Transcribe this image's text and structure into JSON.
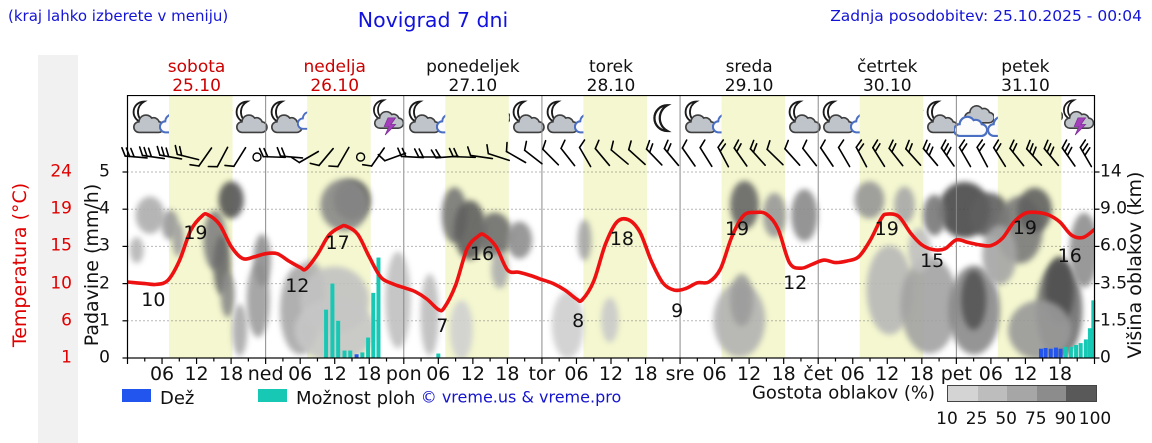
{
  "header": {
    "hint": "(kraj lahko izberete v meniju)",
    "title": "Novigrad 7 dni",
    "updated": "Zadnja posodobitev: 25.10.2025 - 00:04"
  },
  "days": [
    {
      "name": "sobota",
      "date": "25.10",
      "highlight": true,
      "icons": [
        "moon-cloud",
        "sun-cloud",
        "sun-cloud",
        "moon-cloud"
      ]
    },
    {
      "name": "nedelja",
      "date": "26.10",
      "highlight": true,
      "icons": [
        "moon-cloud",
        "sun-storm",
        "sun-storm",
        "moon-storm"
      ]
    },
    {
      "name": "ponedeljek",
      "date": "27.10",
      "highlight": false,
      "icons": [
        "moon-cloud",
        "sun-cloud",
        "clouds",
        "moon-cloud"
      ]
    },
    {
      "name": "torek",
      "date": "28.10",
      "highlight": false,
      "icons": [
        "moon-cloud",
        "sun-cloud",
        "sun",
        "moon"
      ]
    },
    {
      "name": "sreda",
      "date": "29.10",
      "highlight": false,
      "icons": [
        "moon-cloud",
        "sun-cloud",
        "sun-cloud",
        "moon-cloud"
      ]
    },
    {
      "name": "četrtek",
      "date": "30.10",
      "highlight": false,
      "icons": [
        "moon-cloud",
        "sun-cloud",
        "sun-cloud",
        "moon-cloud"
      ]
    },
    {
      "name": "petek",
      "date": "31.10",
      "highlight": false,
      "icons": [
        "clouds",
        "clouds",
        "clouds-drizzle",
        "moon-storm"
      ]
    }
  ],
  "axes": {
    "temp_label": "Temperatura (°C)",
    "temp_ticks": [
      "24",
      "19",
      "15",
      "10",
      "6",
      "1"
    ],
    "precip_label": "Padavine (mm/h)",
    "precip_ticks": [
      "5",
      "4",
      "3",
      "2",
      "1",
      "0"
    ],
    "cloud_label": "Višina oblakov (km)",
    "cloud_ticks": [
      "14",
      "9.0",
      "6.0",
      "3.5",
      "1.5",
      "0"
    ],
    "time_ticks": [
      "06",
      "12",
      "18"
    ],
    "day_abbrs": [
      "ned",
      "pon",
      "tor",
      "sre",
      "čet",
      "pet"
    ]
  },
  "legend": {
    "rain_label": "Dež",
    "shower_label": "Možnost ploh",
    "copyright": "© vreme.us & vreme.pro",
    "cloud_density_label": "Gostota oblakov (%)",
    "density_ticks": [
      "10",
      "25",
      "50",
      "75",
      "90",
      "100"
    ]
  },
  "colors": {
    "rain": "#2255ee",
    "shower": "#17c9b4",
    "temp_curve": "#ee1111",
    "temp_axis": "#e00000",
    "day_red": "#cc0000",
    "blue_text": "#1414d6",
    "day_band": "#f4f7cf",
    "density_scale": [
      "#d4d4d4",
      "#bdbdbd",
      "#a6a6a6",
      "#8c8c8c",
      "#595959"
    ]
  },
  "chart_data": {
    "type": "line",
    "title": "Novigrad 7 dni",
    "x_unit": "hours from Sat 00:00",
    "xlim": [
      0,
      168
    ],
    "precip_axis_lim": [
      0,
      5
    ],
    "temp_axis_ticks_c": [
      1,
      6,
      10,
      15,
      19,
      24
    ],
    "cloud_height_axis_km": [
      0,
      1.5,
      3.5,
      6.0,
      9.0,
      14
    ],
    "temperature": {
      "x": [
        0,
        3,
        5,
        7,
        9,
        11,
        13,
        14,
        16,
        18,
        20,
        22,
        24,
        26,
        28,
        30,
        31,
        33,
        35,
        37,
        38,
        40,
        42,
        44,
        46,
        48,
        50,
        52,
        54,
        55,
        57,
        59,
        61,
        62,
        64,
        66,
        68,
        70,
        72,
        74,
        76,
        78,
        79,
        81,
        83,
        85,
        87,
        89,
        91,
        93,
        95,
        97,
        99,
        101,
        103,
        105,
        107,
        109,
        111,
        113,
        115,
        117,
        119,
        121,
        123,
        125,
        127,
        129,
        131,
        132,
        134,
        136,
        138,
        140,
        142,
        144,
        146,
        148,
        150,
        152,
        154,
        156,
        158,
        160,
        162,
        164,
        166,
        168
      ],
      "values": [
        10.4,
        10.2,
        10.1,
        10.6,
        13.0,
        16.8,
        18.6,
        18.7,
        17.5,
        14.8,
        13.3,
        13.5,
        13.9,
        13.9,
        13.0,
        12.2,
        12.0,
        13.8,
        16.2,
        17.2,
        17.3,
        16.3,
        13.5,
        11.0,
        10.2,
        9.7,
        9.2,
        8.3,
        7.0,
        7.2,
        10.0,
        14.5,
        16.1,
        16.2,
        14.8,
        11.9,
        11.6,
        11.2,
        10.7,
        10.2,
        9.4,
        8.3,
        8.2,
        10.5,
        15.0,
        17.8,
        18.1,
        16.6,
        13.0,
        10.3,
        9.4,
        9.6,
        10.3,
        10.4,
        12.0,
        16.0,
        18.6,
        19.0,
        18.8,
        17.0,
        12.8,
        12.1,
        12.6,
        13.1,
        12.8,
        13.0,
        13.5,
        15.5,
        18.3,
        18.8,
        18.5,
        16.5,
        15.0,
        14.4,
        14.5,
        15.6,
        15.3,
        15.0,
        14.9,
        15.8,
        17.8,
        18.9,
        19.0,
        18.7,
        17.8,
        16.2,
        15.9,
        16.9
      ]
    },
    "point_labels": [
      [
        4.5,
        1.59,
        "10"
      ],
      [
        11.8,
        3.39,
        "19"
      ],
      [
        29.5,
        1.96,
        "12"
      ],
      [
        36.5,
        3.12,
        "17"
      ],
      [
        54.7,
        0.89,
        "7"
      ],
      [
        61.6,
        2.82,
        "16"
      ],
      [
        78.3,
        1.02,
        "8"
      ],
      [
        85.9,
        3.23,
        "18"
      ],
      [
        95.5,
        1.29,
        "9"
      ],
      [
        105.9,
        3.49,
        "19"
      ],
      [
        116.0,
        2.04,
        "12"
      ],
      [
        131.9,
        3.49,
        "19"
      ],
      [
        139.8,
        2.63,
        "15"
      ],
      [
        155.9,
        3.52,
        "19"
      ],
      [
        163.7,
        2.77,
        "16"
      ]
    ],
    "precipitation_mm_h": [
      [
        34.5,
        1.3,
        "s"
      ],
      [
        35.6,
        2.0,
        "s"
      ],
      [
        36.6,
        1.0,
        "s"
      ],
      [
        37.7,
        0.2,
        "s"
      ],
      [
        38.7,
        0.2,
        "s"
      ],
      [
        39.8,
        0.1,
        "r"
      ],
      [
        40.8,
        0.15,
        "s"
      ],
      [
        41.8,
        0.55,
        "s"
      ],
      [
        42.7,
        1.75,
        "s"
      ],
      [
        43.6,
        2.7,
        "s"
      ],
      [
        54.0,
        0.12,
        "s"
      ],
      [
        158.7,
        0.25,
        "r"
      ],
      [
        159.5,
        0.27,
        "r"
      ],
      [
        160.4,
        0.25,
        "r"
      ],
      [
        161.3,
        0.28,
        "r"
      ],
      [
        162.1,
        0.25,
        "r"
      ],
      [
        163.0,
        0.3,
        "s"
      ],
      [
        163.9,
        0.3,
        "s"
      ],
      [
        164.8,
        0.35,
        "s"
      ],
      [
        165.6,
        0.4,
        "s"
      ],
      [
        166.5,
        0.5,
        "s"
      ],
      [
        167.2,
        0.8,
        "s"
      ],
      [
        167.8,
        1.55,
        "s"
      ]
    ],
    "cloud_blobs": [
      [
        3.9,
        3.84,
        2.5,
        0.5,
        "#aeaeae"
      ],
      [
        7.4,
        3.58,
        1.5,
        0.4,
        "#9a9a9a"
      ],
      [
        1.6,
        2.9,
        1.2,
        0.35,
        "#b5b5b5"
      ],
      [
        8.8,
        3.17,
        1.0,
        0.45,
        "#a0a0a0"
      ],
      [
        15.2,
        3.17,
        2.0,
        0.8,
        "#808080"
      ],
      [
        16.4,
        2.5,
        1.5,
        0.8,
        "#6a6a6a"
      ],
      [
        17.4,
        1.69,
        1.2,
        0.6,
        "#8a8a8a"
      ],
      [
        18.0,
        4.25,
        2.2,
        0.5,
        "#555555"
      ],
      [
        19.5,
        0.75,
        1.3,
        0.7,
        "#aaaaaa"
      ],
      [
        22.7,
        1.56,
        2.0,
        1.0,
        "#9e9e9e"
      ],
      [
        23.4,
        2.63,
        1.5,
        0.7,
        "#8f8f8f"
      ],
      [
        30.0,
        1.29,
        3.5,
        1.2,
        "#a8a8a8"
      ],
      [
        31.7,
        1.83,
        2.5,
        0.8,
        "#b0b0b0"
      ],
      [
        36.0,
        1.56,
        6.0,
        0.9,
        "#c2c2c2"
      ],
      [
        36.0,
        0.75,
        7.0,
        0.85,
        "#c6c6c6"
      ],
      [
        39.0,
        4.25,
        3.2,
        0.55,
        "#5a5a5a"
      ],
      [
        37.7,
        4.11,
        4.2,
        0.7,
        "#888888"
      ],
      [
        47.0,
        1.56,
        2.2,
        1.3,
        "#c0c0c0"
      ],
      [
        52.5,
        1.16,
        1.6,
        1.1,
        "#bdbdbd"
      ],
      [
        56.8,
        3.84,
        2.2,
        0.75,
        "#777777"
      ],
      [
        59.5,
        3.44,
        2.8,
        0.8,
        "#5e5e5e"
      ],
      [
        63.8,
        3.31,
        3.0,
        0.6,
        "#6e6e6e"
      ],
      [
        68.1,
        3.17,
        2.2,
        0.5,
        "#8e8e8e"
      ],
      [
        64.7,
        2.37,
        1.5,
        0.5,
        "#aeaeae"
      ],
      [
        58.0,
        0.75,
        2.0,
        0.8,
        "#d0d0d0"
      ],
      [
        79.4,
        3.17,
        1.2,
        0.55,
        "#a5a5a5"
      ],
      [
        76.5,
        0.89,
        2.8,
        0.9,
        "#cfcfcf"
      ],
      [
        83.8,
        1.02,
        1.5,
        0.6,
        "#c9c9c9"
      ],
      [
        107.2,
        4.11,
        2.5,
        0.65,
        "#666666"
      ],
      [
        112.4,
        3.84,
        2.0,
        0.6,
        "#999999"
      ],
      [
        117.6,
        3.84,
        2.3,
        0.7,
        "#8a8a8a"
      ],
      [
        106.3,
        1.02,
        4.5,
        1.0,
        "#b2b2b2"
      ],
      [
        106.7,
        1.56,
        2.0,
        0.7,
        "#9c9c9c"
      ],
      [
        128.9,
        4.25,
        2.6,
        0.5,
        "#969696"
      ],
      [
        135.0,
        4.11,
        1.8,
        0.5,
        "#a8a8a8"
      ],
      [
        145.4,
        3.98,
        4.5,
        0.75,
        "#4a4a4a"
      ],
      [
        149.7,
        3.84,
        3.5,
        0.6,
        "#5e5e5e"
      ],
      [
        140.2,
        3.84,
        2.0,
        0.55,
        "#787878"
      ],
      [
        132.4,
        1.83,
        4.0,
        1.2,
        "#b8b8b8"
      ],
      [
        139.3,
        1.42,
        5.0,
        1.3,
        "#a2a2a2"
      ],
      [
        147.1,
        1.29,
        4.5,
        1.2,
        "#8a8a8a"
      ],
      [
        147.0,
        1.56,
        2.2,
        0.8,
        "#555555"
      ],
      [
        155.0,
        3.44,
        4.0,
        0.9,
        "#7a7a7a"
      ],
      [
        157.6,
        3.98,
        3.0,
        0.6,
        "#616161"
      ],
      [
        161.9,
        1.29,
        4.0,
        1.3,
        "#6f6f6f"
      ],
      [
        161.9,
        1.83,
        2.5,
        0.9,
        "#4f4f4f"
      ],
      [
        166.2,
        2.9,
        2.5,
        1.0,
        "#8e8e8e"
      ],
      [
        158.5,
        0.75,
        5.5,
        0.8,
        "#999999"
      ],
      [
        151.5,
        2.77,
        3.0,
        0.8,
        "#a5a5a5"
      ],
      [
        137.6,
        2.9,
        2.0,
        0.6,
        "#c0c0c0"
      ]
    ],
    "wind_barbs": [
      [
        5,
        3
      ],
      [
        8,
        3
      ],
      [
        10,
        3
      ],
      [
        14,
        2
      ],
      [
        -55,
        1
      ],
      [
        -62,
        1
      ],
      [
        -58,
        1
      ],
      "calm",
      [
        2,
        2
      ],
      [
        5,
        2
      ],
      [
        -30,
        1
      ],
      [
        -50,
        1
      ],
      [
        -60,
        1
      ],
      "calm",
      [
        -55,
        1
      ],
      [
        -20,
        1
      ],
      [
        3,
        2
      ],
      [
        0,
        2
      ],
      [
        -4,
        2
      ],
      [
        2,
        2
      ],
      [
        8,
        1
      ],
      [
        18,
        1
      ],
      [
        30,
        1
      ],
      [
        38,
        1
      ],
      [
        45,
        1
      ],
      [
        52,
        1
      ],
      [
        60,
        1
      ],
      [
        50,
        1
      ],
      [
        40,
        1
      ],
      [
        42,
        1
      ],
      [
        46,
        2
      ],
      [
        50,
        2
      ],
      [
        55,
        1
      ],
      [
        58,
        1
      ],
      [
        62,
        2
      ],
      [
        55,
        2
      ],
      [
        48,
        2
      ],
      [
        44,
        1
      ],
      [
        48,
        1
      ],
      [
        52,
        1
      ],
      [
        56,
        1
      ],
      [
        60,
        1
      ],
      [
        62,
        2
      ],
      [
        58,
        2
      ],
      [
        52,
        2
      ],
      [
        48,
        2
      ],
      [
        50,
        3
      ],
      [
        55,
        3
      ],
      [
        60,
        2
      ],
      [
        62,
        2
      ],
      [
        58,
        2
      ],
      [
        52,
        2
      ],
      [
        48,
        3
      ],
      [
        50,
        3
      ],
      [
        55,
        3
      ],
      [
        60,
        3
      ]
    ]
  }
}
